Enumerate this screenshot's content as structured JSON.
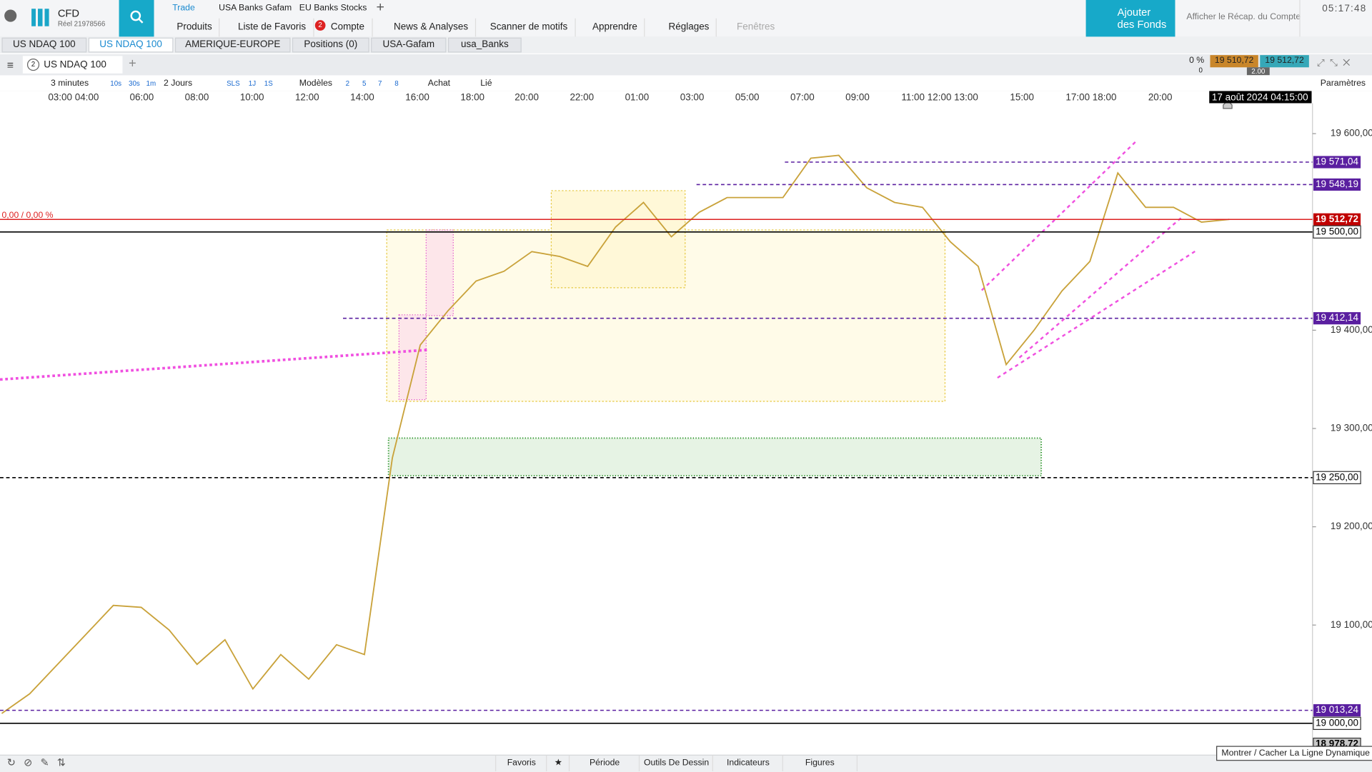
{
  "header": {
    "brand": "CFD",
    "account": "Réel 21978566",
    "tabs": [
      "Trade",
      "USA Banks Gafam",
      "EU Banks Stocks"
    ],
    "menu": [
      "Produits",
      "Liste de Favoris",
      "Compte",
      "News & Analyses",
      "Scanner de motifs",
      "Apprendre",
      "Réglages",
      "Fenêtres"
    ],
    "badge": "2",
    "funds": [
      "Ajouter",
      "des Fonds"
    ],
    "summary": "Afficher le Récap. du Compte",
    "clock": "05:17:48"
  },
  "workspace_tabs": [
    "US NDAQ 100",
    "US NDAQ 100",
    "AMERIQUE-EUROPE",
    "Positions (0)",
    "USA-Gafam",
    "usa_Banks"
  ],
  "chart_header": {
    "index": "2",
    "instrument": "US NDAQ 100",
    "change": "0 %",
    "zero": "0",
    "bid": "19 510,72",
    "spread": "2.00",
    "ask": "19 512,72"
  },
  "toolbar": [
    "3 minutes",
    "10s",
    "30s",
    "1m",
    "2 Jours",
    "SLS",
    "1J",
    "1S",
    "Modèles",
    "2",
    "5",
    "7",
    "8",
    "Achat",
    "Lié",
    "Paramètres"
  ],
  "chart_data": {
    "type": "line",
    "x_labels": [
      "03:00 04:00",
      "06:00",
      "08:00",
      "10:00",
      "12:00",
      "14:00",
      "16:00",
      "18:00",
      "20:00",
      "22:00",
      "01:00",
      "03:00",
      "05:00",
      "07:00",
      "09:00",
      "11:00 12:00 13:00",
      "15:00",
      "17:00 18:00",
      "20:00"
    ],
    "crosshair_label": "17 août 2024 04:15:00",
    "pnl_label": "0,00 / 0,00 %",
    "series": [
      {
        "name": "US NDAQ 100",
        "color": "#c9a23a",
        "values": [
          19010,
          19030,
          19060,
          19090,
          19120,
          19118,
          19095,
          19060,
          19085,
          19035,
          19070,
          19045,
          19080,
          19070,
          19270,
          19385,
          19420,
          19450,
          19460,
          19480,
          19475,
          19465,
          19505,
          19530,
          19495,
          19520,
          19535,
          19535,
          19535,
          19575,
          19578,
          19545,
          19530,
          19525,
          19490,
          19465,
          19365,
          19400,
          19440,
          19470,
          19560,
          19525,
          19525,
          19510,
          19512.72
        ]
      }
    ],
    "ylim": [
      18969,
      19631
    ],
    "yticks": [
      {
        "value": 19100,
        "label": "19 100,00"
      },
      {
        "value": 19200,
        "label": "19 200,00"
      },
      {
        "value": 19300,
        "label": "19 300,00"
      },
      {
        "value": 19400,
        "label": "19 400,00"
      },
      {
        "value": 19600,
        "label": "19 600,00"
      }
    ],
    "price_lines": [
      {
        "value": 19571.04,
        "label": "19 571,04",
        "color": "#5a1fa0",
        "bg": "#5a1fa0"
      },
      {
        "value": 19548.19,
        "label": "19 548,19",
        "color": "#5a1fa0",
        "bg": "#5a1fa0"
      },
      {
        "value": 19512.72,
        "label": "19 512,72",
        "color": "#d22",
        "bg": "#c00000"
      },
      {
        "value": 19500,
        "label": "19 500,00",
        "color": "#000",
        "bg": "#ffffff"
      },
      {
        "value": 19412.14,
        "label": "19 412,14",
        "color": "#5a1fa0",
        "bg": "#5a1fa0"
      },
      {
        "value": 19250,
        "label": "19 250,00",
        "color": "#000",
        "bg": "#ffffff"
      },
      {
        "value": 19013.24,
        "label": "19 013,24",
        "color": "#5a1fa0",
        "bg": "#5a1fa0"
      },
      {
        "value": 19000,
        "label": "19 000,00",
        "color": "#000",
        "bg": "#ffffff"
      },
      {
        "value": 18978.72,
        "label": "18 978,72",
        "color": "#999",
        "bg": "#c8c8c8"
      }
    ]
  },
  "footer": {
    "tabs": [
      "Favoris",
      "Période",
      "Outils De Dessin",
      "Indicateurs",
      "Figures"
    ],
    "tooltip": "Montrer / Cacher La Ligne Dynamique"
  }
}
